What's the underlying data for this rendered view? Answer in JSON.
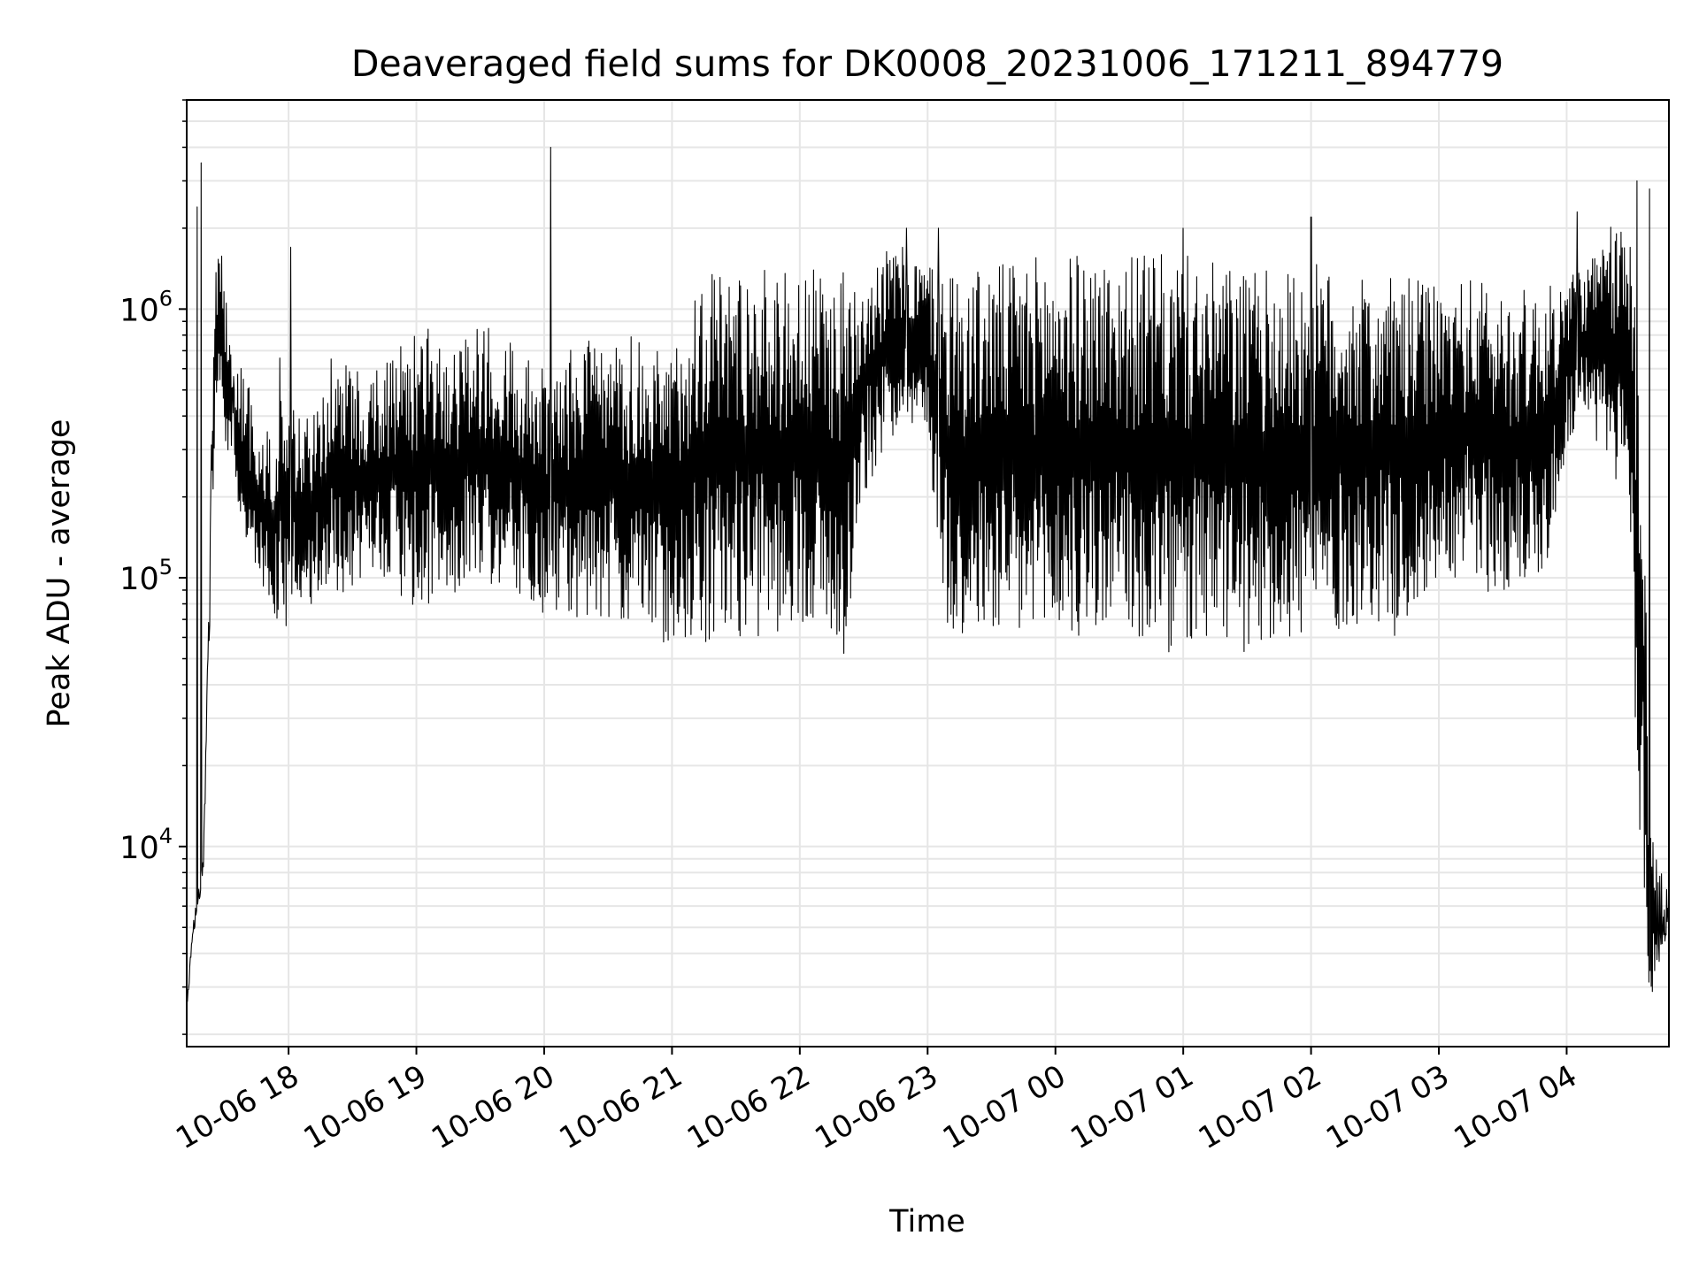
{
  "chart_data": {
    "type": "line",
    "title": "Deaveraged field sums for DK0008_20231006_171211_894779",
    "xlabel": "Time",
    "ylabel": "Peak ADU - average",
    "y_scale": "log",
    "ylim": [
      1800,
      6000000
    ],
    "xlim": [
      "2023-10-06 17:12:11",
      "2023-10-07 04:48:00"
    ],
    "grid": true,
    "grid_minor": true,
    "line_color": "#000000",
    "grid_color": "#e6e6e6",
    "x_ticks": [
      {
        "time": "2023-10-06 18:00",
        "label": "10-06 18"
      },
      {
        "time": "2023-10-06 19:00",
        "label": "10-06 19"
      },
      {
        "time": "2023-10-06 20:00",
        "label": "10-06 20"
      },
      {
        "time": "2023-10-06 21:00",
        "label": "10-06 21"
      },
      {
        "time": "2023-10-06 22:00",
        "label": "10-06 22"
      },
      {
        "time": "2023-10-06 23:00",
        "label": "10-06 23"
      },
      {
        "time": "2023-10-07 00:00",
        "label": "10-07 00"
      },
      {
        "time": "2023-10-07 01:00",
        "label": "10-07 01"
      },
      {
        "time": "2023-10-07 02:00",
        "label": "10-07 02"
      },
      {
        "time": "2023-10-07 03:00",
        "label": "10-07 03"
      },
      {
        "time": "2023-10-07 04:00",
        "label": "10-07 04"
      }
    ],
    "y_ticks": [
      {
        "value": 10000,
        "base": "10",
        "exp": "4"
      },
      {
        "value": 100000,
        "base": "10",
        "exp": "5"
      },
      {
        "value": 1000000,
        "base": "10",
        "exp": "6"
      }
    ],
    "series": [
      {
        "x": [
          "2023-10-06 17:12",
          "2023-10-06 17:14",
          "2023-10-06 17:16",
          "2023-10-06 17:18",
          "2023-10-06 17:20",
          "2023-10-06 17:22",
          "2023-10-06 17:24",
          "2023-10-06 17:26",
          "2023-10-06 17:28",
          "2023-10-06 17:30",
          "2023-10-06 17:32",
          "2023-10-06 17:34",
          "2023-10-06 17:36",
          "2023-10-06 17:38",
          "2023-10-06 17:40",
          "2023-10-06 17:42",
          "2023-10-06 17:44",
          "2023-10-06 17:46",
          "2023-10-06 17:48",
          "2023-10-06 17:50",
          "2023-10-06 17:52",
          "2023-10-06 17:54",
          "2023-10-06 17:56",
          "2023-10-06 17:58",
          "2023-10-06 18:00",
          "2023-10-06 18:05",
          "2023-10-06 18:10",
          "2023-10-06 18:15",
          "2023-10-06 18:20",
          "2023-10-06 18:30",
          "2023-10-06 18:40",
          "2023-10-06 18:50",
          "2023-10-06 19:00",
          "2023-10-06 19:10",
          "2023-10-06 19:20",
          "2023-10-06 19:30",
          "2023-10-06 19:40",
          "2023-10-06 19:50",
          "2023-10-06 20:00",
          "2023-10-06 20:05",
          "2023-10-06 20:10",
          "2023-10-06 20:20",
          "2023-10-06 20:30",
          "2023-10-06 20:40",
          "2023-10-06 20:50",
          "2023-10-06 21:00",
          "2023-10-06 21:10",
          "2023-10-06 21:20",
          "2023-10-06 21:30",
          "2023-10-06 21:40",
          "2023-10-06 21:50",
          "2023-10-06 22:00",
          "2023-10-06 22:10",
          "2023-10-06 22:20",
          "2023-10-06 22:30",
          "2023-10-06 22:40",
          "2023-10-06 22:50",
          "2023-10-06 23:00",
          "2023-10-06 23:10",
          "2023-10-06 23:20",
          "2023-10-06 23:30",
          "2023-10-06 23:40",
          "2023-10-06 23:50",
          "2023-10-07 00:00",
          "2023-10-07 00:10",
          "2023-10-07 00:20",
          "2023-10-07 00:30",
          "2023-10-07 00:40",
          "2023-10-07 00:50",
          "2023-10-07 01:00",
          "2023-10-07 01:10",
          "2023-10-07 01:20",
          "2023-10-07 01:30",
          "2023-10-07 01:40",
          "2023-10-07 01:50",
          "2023-10-07 02:00",
          "2023-10-07 02:10",
          "2023-10-07 02:20",
          "2023-10-07 02:30",
          "2023-10-07 02:40",
          "2023-10-07 02:50",
          "2023-10-07 03:00",
          "2023-10-07 03:10",
          "2023-10-07 03:20",
          "2023-10-07 03:30",
          "2023-10-07 03:40",
          "2023-10-07 03:50",
          "2023-10-07 04:00",
          "2023-10-07 04:05",
          "2023-10-07 04:10",
          "2023-10-07 04:15",
          "2023-10-07 04:20",
          "2023-10-07 04:25",
          "2023-10-07 04:30",
          "2023-10-07 04:32",
          "2023-10-07 04:34",
          "2023-10-07 04:36",
          "2023-10-07 04:38",
          "2023-10-07 04:40",
          "2023-10-07 04:42",
          "2023-10-07 04:44",
          "2023-10-07 04:46",
          "2023-10-07 04:48"
        ],
        "low": [
          2200,
          3500,
          5000,
          6000,
          8000,
          30000,
          150000,
          400000,
          500000,
          300000,
          250000,
          250000,
          200000,
          150000,
          120000,
          100000,
          100000,
          90000,
          90000,
          80000,
          70000,
          60000,
          60000,
          55000,
          70000,
          70000,
          80000,
          80000,
          85000,
          90000,
          100000,
          90000,
          70000,
          80000,
          90000,
          100000,
          90000,
          80000,
          70000,
          70000,
          70000,
          70000,
          70000,
          65000,
          60000,
          55000,
          60000,
          55000,
          60000,
          60000,
          60000,
          70000,
          60000,
          45000,
          200000,
          300000,
          400000,
          300000,
          60000,
          55000,
          60000,
          55000,
          50000,
          60000,
          55000,
          60000,
          55000,
          55000,
          50000,
          50000,
          55000,
          55000,
          50000,
          60000,
          55000,
          60000,
          60000,
          65000,
          70000,
          60000,
          70000,
          100000,
          100000,
          90000,
          80000,
          90000,
          100000,
          300000,
          350000,
          400000,
          300000,
          250000,
          200000,
          150000,
          20000,
          8000,
          5000,
          3000,
          2500,
          3000,
          3500,
          4000,
          4500
        ],
        "high": [
          2500,
          4000,
          6000,
          7000,
          9000,
          50000,
          500000,
          1500000,
          2000000,
          1200000,
          900000,
          700000,
          700000,
          600000,
          600000,
          500000,
          400000,
          400000,
          350000,
          350000,
          350000,
          450000,
          700000,
          400000,
          600000,
          400000,
          400000,
          500000,
          700000,
          600000,
          600000,
          700000,
          900000,
          800000,
          800000,
          900000,
          800000,
          700000,
          600000,
          800000,
          700000,
          800000,
          700000,
          800000,
          700000,
          700000,
          1300000,
          1500000,
          1500000,
          1400000,
          1400000,
          1400000,
          1400000,
          1400000,
          1500000,
          1700000,
          1700000,
          1500000,
          1500000,
          1400000,
          1500000,
          1500000,
          1600000,
          1600000,
          1600000,
          1600000,
          1600000,
          1600000,
          1600000,
          1600000,
          1500000,
          1500000,
          1400000,
          1400000,
          1400000,
          1500000,
          1400000,
          1300000,
          1300000,
          1300000,
          1300000,
          1200000,
          1300000,
          1300000,
          1200000,
          1200000,
          1200000,
          1300000,
          1500000,
          1500000,
          1700000,
          2000000,
          2200000,
          2000000,
          1500000,
          1000000,
          500000,
          30000,
          12000,
          10000,
          8000,
          8000,
          8000
        ],
        "spikes": [
          {
            "x": "2023-10-06 17:19",
            "y": 3500000
          },
          {
            "x": "2023-10-06 17:17",
            "y": 2400000
          },
          {
            "x": "2023-10-06 20:03",
            "y": 4000000
          },
          {
            "x": "2023-10-06 18:01",
            "y": 1700000
          },
          {
            "x": "2023-10-06 22:50",
            "y": 2000000
          },
          {
            "x": "2023-10-06 23:05",
            "y": 2000000
          },
          {
            "x": "2023-10-07 01:00",
            "y": 2000000
          },
          {
            "x": "2023-10-07 02:00",
            "y": 2200000
          },
          {
            "x": "2023-10-07 04:05",
            "y": 2300000
          },
          {
            "x": "2023-10-07 04:33",
            "y": 3000000
          },
          {
            "x": "2023-10-07 04:39",
            "y": 2800000
          }
        ]
      }
    ]
  }
}
